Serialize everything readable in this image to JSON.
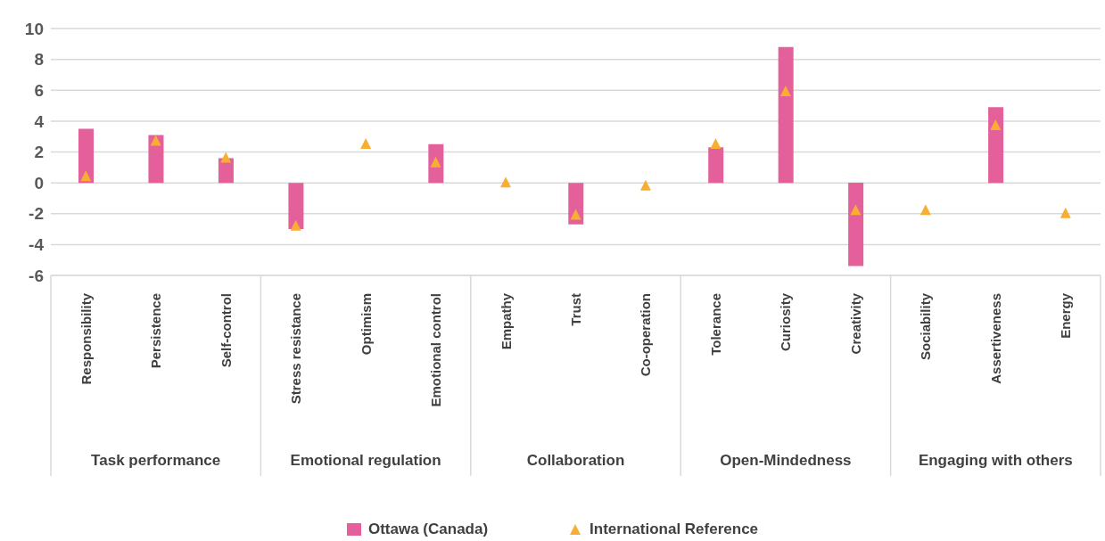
{
  "chart_data": {
    "type": "bar",
    "categories": [
      "Responsibility",
      "Persistence",
      "Self-control",
      "Stress resistance",
      "Optimism",
      "Emotional control",
      "Empathy",
      "Trust",
      "Co-operation",
      "Tolerance",
      "Curiosity",
      "Creativity",
      "Sociability",
      "Assertiveness",
      "Energy"
    ],
    "series": [
      {
        "name": "Ottawa (Canada)",
        "color": "#e3609a",
        "values": [
          3.5,
          3.1,
          1.6,
          -3.0,
          null,
          2.5,
          null,
          -2.7,
          null,
          2.3,
          8.8,
          -5.4,
          null,
          4.9,
          null
        ]
      },
      {
        "name": "International Reference",
        "type": "scatter",
        "color": "#f8ae33",
        "values": [
          0.4,
          2.7,
          1.6,
          -2.8,
          2.5,
          1.3,
          0.0,
          -2.1,
          -0.2,
          2.5,
          5.9,
          -1.8,
          -1.8,
          3.7,
          -2.0
        ]
      }
    ],
    "annotations": [
      "Task performance",
      "Emotional regulation",
      "Collaboration",
      "Open-Mindedness",
      "Engaging with others"
    ],
    "ylim": [
      -6,
      10
    ],
    "yticks": [
      -6,
      -4,
      -2,
      0,
      2,
      4,
      6,
      8,
      10
    ],
    "grid": "y",
    "legend": "bottom",
    "marker": "triangle"
  }
}
